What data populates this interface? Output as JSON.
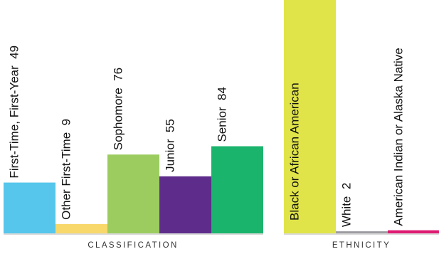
{
  "chart_data": [
    {
      "type": "bar",
      "xlabel": "CLASSIFICATION",
      "categories": [
        "First-Time, First-Year",
        "Other First-Time",
        "Sophomore",
        "Junior",
        "Senior"
      ],
      "values": [
        49,
        9,
        76,
        55,
        84
      ],
      "value_labels": [
        "49",
        "9",
        "76",
        "55",
        "84"
      ],
      "colors": [
        "#56c6ec",
        "#f8d86a",
        "#9ccc60",
        "#5e2d8b",
        "#1ab46c"
      ],
      "ylim": [
        0,
        225
      ]
    },
    {
      "type": "bar",
      "xlabel": "ETHNICITY",
      "categories": [
        "Black or African American",
        "White",
        "American Indian or Alaska Native"
      ],
      "values": [
        225,
        2,
        3
      ],
      "value_labels": [
        "",
        "2",
        ""
      ],
      "colors": [
        "#e0e448",
        "#9b9ba0",
        "#de1a72"
      ],
      "ylim": [
        0,
        225
      ]
    }
  ]
}
